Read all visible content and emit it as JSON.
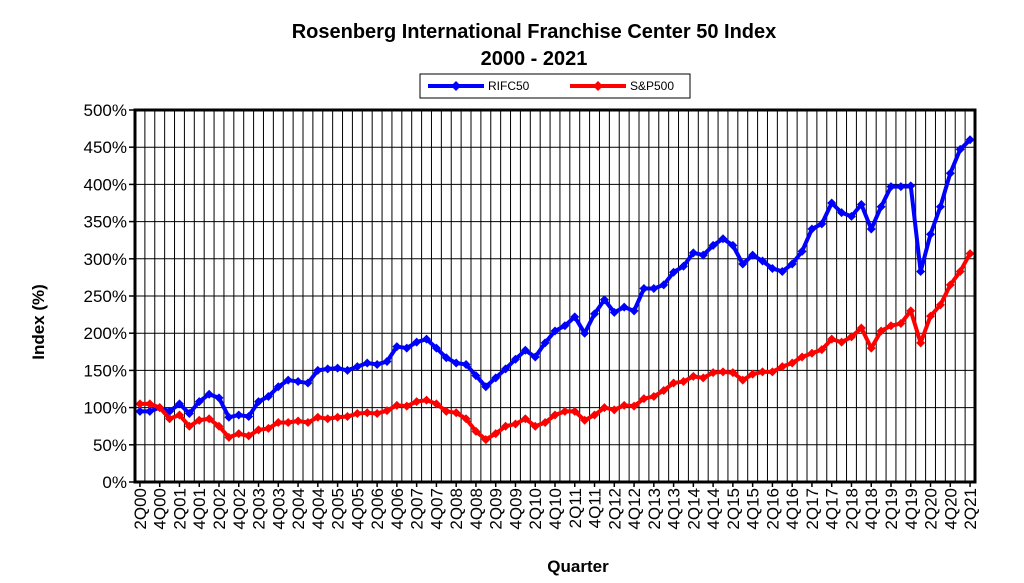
{
  "chart_data": {
    "type": "line",
    "title": "Rosenberg International Franchise Center 50 Index",
    "subtitle": "2000 - 2021",
    "xlabel": "Quarter",
    "ylabel": "Index (%)",
    "ylim": [
      0,
      500
    ],
    "yticks": [
      "0%",
      "50%",
      "100%",
      "150%",
      "200%",
      "250%",
      "300%",
      "350%",
      "400%",
      "450%",
      "500%"
    ],
    "grid": true,
    "legend_position": "top-center",
    "colors": {
      "RIFC50": "#0000ff",
      "S&P500": "#ff0000"
    },
    "x": [
      "2Q00",
      "3Q00",
      "4Q00",
      "1Q01",
      "2Q01",
      "3Q01",
      "4Q01",
      "1Q02",
      "2Q02",
      "3Q02",
      "4Q02",
      "1Q03",
      "2Q03",
      "3Q03",
      "4Q03",
      "1Q04",
      "2Q04",
      "3Q04",
      "4Q04",
      "1Q05",
      "2Q05",
      "3Q05",
      "4Q05",
      "1Q06",
      "2Q06",
      "3Q06",
      "4Q06",
      "1Q07",
      "2Q07",
      "3Q07",
      "4Q07",
      "1Q08",
      "2Q08",
      "3Q08",
      "4Q08",
      "1Q09",
      "2Q09",
      "3Q09",
      "4Q09",
      "1Q10",
      "2Q10",
      "3Q10",
      "4Q10",
      "1Q11",
      "2Q11",
      "3Q11",
      "4Q11",
      "1Q12",
      "2Q12",
      "3Q12",
      "4Q12",
      "1Q13",
      "2Q13",
      "3Q13",
      "4Q13",
      "1Q14",
      "2Q14",
      "3Q14",
      "4Q14",
      "1Q15",
      "2Q15",
      "3Q15",
      "4Q15",
      "1Q16",
      "2Q16",
      "3Q16",
      "4Q16",
      "1Q17",
      "2Q17",
      "3Q17",
      "4Q17",
      "1Q18",
      "2Q18",
      "3Q18",
      "4Q18",
      "1Q19",
      "2Q19",
      "3Q19",
      "4Q19",
      "1Q20",
      "2Q20",
      "3Q20",
      "4Q20",
      "1Q21",
      "2Q21"
    ],
    "xtick_labels": [
      "2Q00",
      "4Q00",
      "2Q01",
      "4Q01",
      "2Q02",
      "4Q02",
      "2Q03",
      "4Q03",
      "2Q04",
      "4Q04",
      "2Q05",
      "4Q05",
      "2Q06",
      "4Q06",
      "2Q07",
      "4Q07",
      "2Q08",
      "4Q08",
      "2Q09",
      "4Q09",
      "2Q10",
      "4Q10",
      "2Q11",
      "4Q11",
      "2Q12",
      "4Q12",
      "2Q13",
      "4Q13",
      "2Q14",
      "4Q14",
      "2Q15",
      "4Q15",
      "2Q16",
      "4Q16",
      "2Q17",
      "4Q17",
      "2Q18",
      "4Q18",
      "2Q19",
      "4Q19",
      "2Q20",
      "4Q20",
      "2Q21"
    ],
    "series": [
      {
        "name": "RIFC50",
        "values": [
          95,
          95,
          100,
          95,
          105,
          92,
          108,
          118,
          113,
          87,
          90,
          88,
          108,
          115,
          128,
          137,
          135,
          133,
          150,
          152,
          153,
          150,
          155,
          160,
          158,
          162,
          182,
          180,
          188,
          192,
          180,
          167,
          160,
          158,
          143,
          128,
          140,
          152,
          165,
          177,
          168,
          187,
          203,
          210,
          222,
          200,
          226,
          245,
          228,
          235,
          230,
          260,
          260,
          265,
          282,
          290,
          308,
          305,
          318,
          327,
          318,
          293,
          305,
          297,
          287,
          283,
          293,
          310,
          340,
          347,
          375,
          362,
          357,
          373,
          340,
          370,
          397,
          397,
          398,
          283,
          333,
          370,
          415,
          447,
          460
        ]
      },
      {
        "name": "S&P500",
        "values": [
          105,
          105,
          100,
          85,
          90,
          75,
          83,
          85,
          75,
          60,
          65,
          62,
          70,
          72,
          80,
          80,
          82,
          80,
          87,
          85,
          87,
          88,
          92,
          93,
          92,
          96,
          103,
          102,
          108,
          110,
          105,
          95,
          93,
          85,
          68,
          57,
          65,
          75,
          78,
          85,
          75,
          80,
          90,
          95,
          95,
          83,
          90,
          100,
          97,
          103,
          102,
          112,
          115,
          123,
          133,
          135,
          142,
          140,
          147,
          148,
          147,
          137,
          145,
          148,
          148,
          155,
          160,
          168,
          173,
          178,
          192,
          188,
          195,
          207,
          180,
          203,
          210,
          213,
          230,
          187,
          223,
          238,
          265,
          283,
          307
        ]
      }
    ]
  }
}
